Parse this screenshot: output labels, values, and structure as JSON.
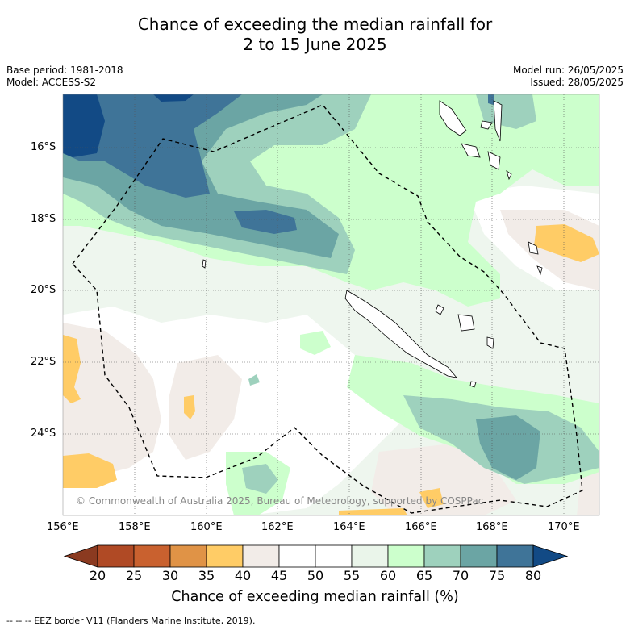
{
  "title": {
    "line1": "Chance of exceeding the median rainfall for",
    "line2": "2 to 15 June 2025"
  },
  "meta": {
    "base_period": "Base period: 1981-2018",
    "model": "Model: ACCESS-S2",
    "model_run": "Model run: 26/05/2025",
    "issued": "Issued: 28/05/2025"
  },
  "map": {
    "lat_ticks": [
      "16°S",
      "18°S",
      "20°S",
      "22°S",
      "24°S"
    ],
    "lon_ticks": [
      "156°E",
      "158°E",
      "160°E",
      "162°E",
      "164°E",
      "166°E",
      "168°E",
      "170°E"
    ],
    "copyright": "© Commonwealth of Australia 2025, Bureau of Meteorology, supported by COSPPac"
  },
  "colorbar": {
    "ticks": [
      "20",
      "25",
      "30",
      "35",
      "40",
      "45",
      "50",
      "55",
      "60",
      "65",
      "70",
      "75",
      "80"
    ],
    "colors": [
      "#b04a25",
      "#c9612f",
      "#e09346",
      "#ffcc66",
      "#f2ece8",
      "#ffffff",
      "#ffffff",
      "#eaf5ea",
      "#ccffcc",
      "#9ed1bd",
      "#6ba5a4",
      "#3f7498"
    ],
    "under_color": "#8b3a20",
    "over_color": "#124a85",
    "label": "Chance of exceeding median rainfall (%)"
  },
  "legend": {
    "eez_note": "--  --  -- EEZ border V11 (Flanders Marine Institute, 2019)."
  }
}
